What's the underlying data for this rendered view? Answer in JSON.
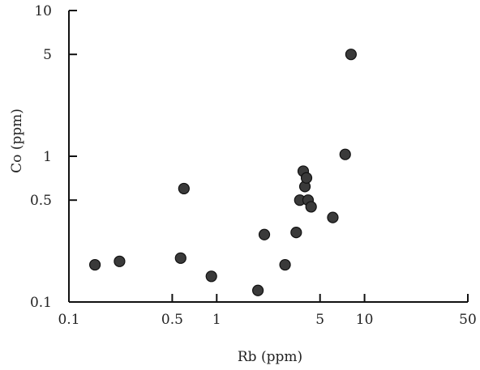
{
  "chart_data": {
    "type": "scatter",
    "title": "",
    "xlabel": "Rb (ppm)",
    "ylabel": "Co (ppm)",
    "x_scale": "log",
    "y_scale": "log",
    "xlim": [
      0.1,
      50
    ],
    "ylim": [
      0.1,
      10
    ],
    "grid": false,
    "x_ticks": [
      {
        "value": 0.1,
        "label": "0.1"
      },
      {
        "value": 0.5,
        "label": "0.5"
      },
      {
        "value": 1,
        "label": "1"
      },
      {
        "value": 5,
        "label": "5"
      },
      {
        "value": 10,
        "label": "10"
      },
      {
        "value": 50,
        "label": "50"
      }
    ],
    "y_ticks": [
      {
        "value": 0.1,
        "label": "0.1"
      },
      {
        "value": 0.5,
        "label": "0.5"
      },
      {
        "value": 1,
        "label": "1"
      },
      {
        "value": 5,
        "label": "5"
      },
      {
        "value": 10,
        "label": "10"
      }
    ],
    "points": [
      {
        "x": 0.15,
        "y": 0.18
      },
      {
        "x": 0.22,
        "y": 0.19
      },
      {
        "x": 0.57,
        "y": 0.2
      },
      {
        "x": 0.6,
        "y": 0.6
      },
      {
        "x": 0.92,
        "y": 0.15
      },
      {
        "x": 1.9,
        "y": 0.12
      },
      {
        "x": 2.1,
        "y": 0.29
      },
      {
        "x": 2.9,
        "y": 0.18
      },
      {
        "x": 3.45,
        "y": 0.3
      },
      {
        "x": 3.65,
        "y": 0.5
      },
      {
        "x": 3.85,
        "y": 0.79
      },
      {
        "x": 3.95,
        "y": 0.62
      },
      {
        "x": 4.05,
        "y": 0.71
      },
      {
        "x": 4.15,
        "y": 0.5
      },
      {
        "x": 4.35,
        "y": 0.45
      },
      {
        "x": 6.1,
        "y": 0.38
      },
      {
        "x": 7.4,
        "y": 1.03
      },
      {
        "x": 8.1,
        "y": 5.0
      }
    ]
  }
}
